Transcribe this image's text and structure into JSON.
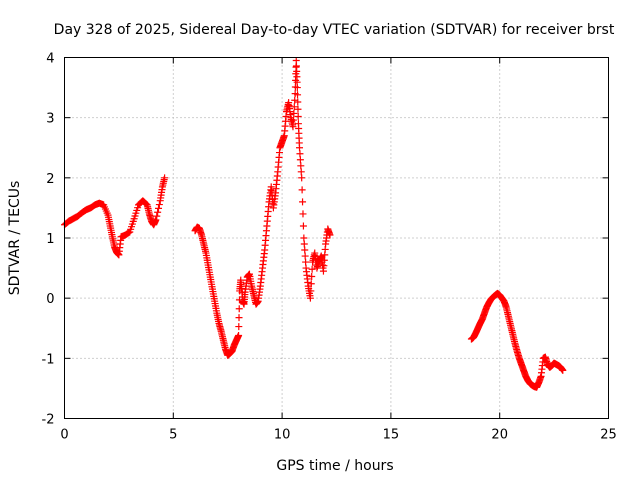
{
  "chart_data": {
    "type": "scatter",
    "title": "Day 328 of 2025, Sidereal Day-to-day VTEC variation (SDTVAR) for receiver brst",
    "xlabel": "GPS time / hours",
    "ylabel": "SDTVAR / TECUs",
    "xlim": [
      0,
      25
    ],
    "ylim": [
      -2,
      4
    ],
    "xticks": [
      0,
      5,
      10,
      15,
      20,
      25
    ],
    "yticks": [
      -2,
      -1,
      0,
      1,
      2,
      3,
      4
    ],
    "xtick_labels": [
      "0",
      "5",
      "10",
      "15",
      "20",
      "25"
    ],
    "ytick_labels": [
      "-2",
      "-1",
      "0",
      "1",
      "2",
      "3",
      "4"
    ],
    "grid": true,
    "marker": "plus",
    "color": "#ff0000",
    "series": [
      {
        "name": "segment-1",
        "x": [
          0.0,
          0.2,
          0.4,
          0.6,
          0.8,
          1.0,
          1.2,
          1.4,
          1.6,
          1.8,
          2.0,
          2.1,
          2.2,
          2.3,
          2.4,
          2.5,
          2.6,
          2.8,
          3.0,
          3.2,
          3.4,
          3.6,
          3.8,
          3.9,
          4.0,
          4.1,
          4.2,
          4.4,
          4.5,
          4.6
        ],
        "y": [
          1.22,
          1.28,
          1.32,
          1.36,
          1.42,
          1.47,
          1.5,
          1.55,
          1.58,
          1.55,
          1.38,
          1.2,
          1.02,
          0.85,
          0.76,
          0.72,
          1.02,
          1.05,
          1.1,
          1.32,
          1.55,
          1.62,
          1.55,
          1.4,
          1.28,
          1.22,
          1.3,
          1.62,
          1.85,
          2.0
        ]
      },
      {
        "name": "segment-2",
        "x": [
          6.0,
          6.1,
          6.2,
          6.3,
          6.4,
          6.5,
          6.6,
          6.7,
          6.8,
          6.9,
          7.0,
          7.1,
          7.2,
          7.3,
          7.4,
          7.5,
          7.6,
          7.7,
          7.8,
          7.9,
          8.0,
          8.05,
          8.1,
          8.2,
          8.25,
          8.3,
          8.4,
          8.5,
          8.6,
          8.7,
          8.8,
          8.9,
          9.0,
          9.1,
          9.2,
          9.3,
          9.4,
          9.5,
          9.6,
          9.7,
          9.8,
          9.9,
          10.0,
          10.1,
          10.2,
          10.3,
          10.4,
          10.5,
          10.6,
          10.65,
          10.7,
          10.75,
          10.8,
          10.9,
          11.0,
          11.1,
          11.2,
          11.3,
          11.4,
          11.5,
          11.6,
          11.7,
          11.8,
          11.9,
          12.0,
          12.1,
          12.2
        ],
        "y": [
          1.12,
          1.18,
          1.16,
          1.05,
          0.9,
          0.75,
          0.55,
          0.35,
          0.15,
          -0.05,
          -0.25,
          -0.42,
          -0.55,
          -0.7,
          -0.85,
          -0.95,
          -0.92,
          -0.88,
          -0.78,
          -0.7,
          -0.62,
          0.12,
          0.3,
          -0.05,
          -0.1,
          0.1,
          0.35,
          0.4,
          0.2,
          0.05,
          -0.1,
          -0.05,
          0.2,
          0.5,
          0.8,
          1.2,
          1.6,
          1.85,
          1.5,
          1.75,
          2.1,
          2.5,
          2.6,
          2.7,
          3.1,
          3.25,
          3.0,
          2.85,
          3.4,
          3.95,
          3.5,
          2.9,
          2.5,
          2.0,
          1.0,
          0.5,
          0.2,
          0.0,
          0.6,
          0.75,
          0.5,
          0.62,
          0.7,
          0.45,
          0.9,
          1.15,
          1.05
        ]
      },
      {
        "name": "segment-3",
        "x": [
          18.7,
          18.8,
          18.9,
          19.0,
          19.1,
          19.2,
          19.3,
          19.4,
          19.5,
          19.6,
          19.7,
          19.8,
          19.9,
          20.0,
          20.1,
          20.2,
          20.3,
          20.4,
          20.5,
          20.6,
          20.7,
          20.8,
          20.9,
          21.0,
          21.1,
          21.2,
          21.3,
          21.4,
          21.5,
          21.6,
          21.7,
          21.8,
          21.9,
          22.0,
          22.1,
          22.2,
          22.3,
          22.4,
          22.5,
          22.6,
          22.7,
          22.8,
          22.9
        ],
        "y": [
          -0.68,
          -0.65,
          -0.58,
          -0.5,
          -0.42,
          -0.35,
          -0.25,
          -0.15,
          -0.08,
          -0.02,
          0.02,
          0.05,
          0.08,
          0.05,
          0.0,
          -0.05,
          -0.15,
          -0.3,
          -0.45,
          -0.6,
          -0.75,
          -0.88,
          -1.0,
          -1.1,
          -1.2,
          -1.3,
          -1.37,
          -1.42,
          -1.45,
          -1.47,
          -1.48,
          -1.4,
          -1.3,
          -1.0,
          -0.98,
          -1.1,
          -1.15,
          -1.12,
          -1.08,
          -1.1,
          -1.12,
          -1.15,
          -1.2
        ]
      }
    ]
  }
}
